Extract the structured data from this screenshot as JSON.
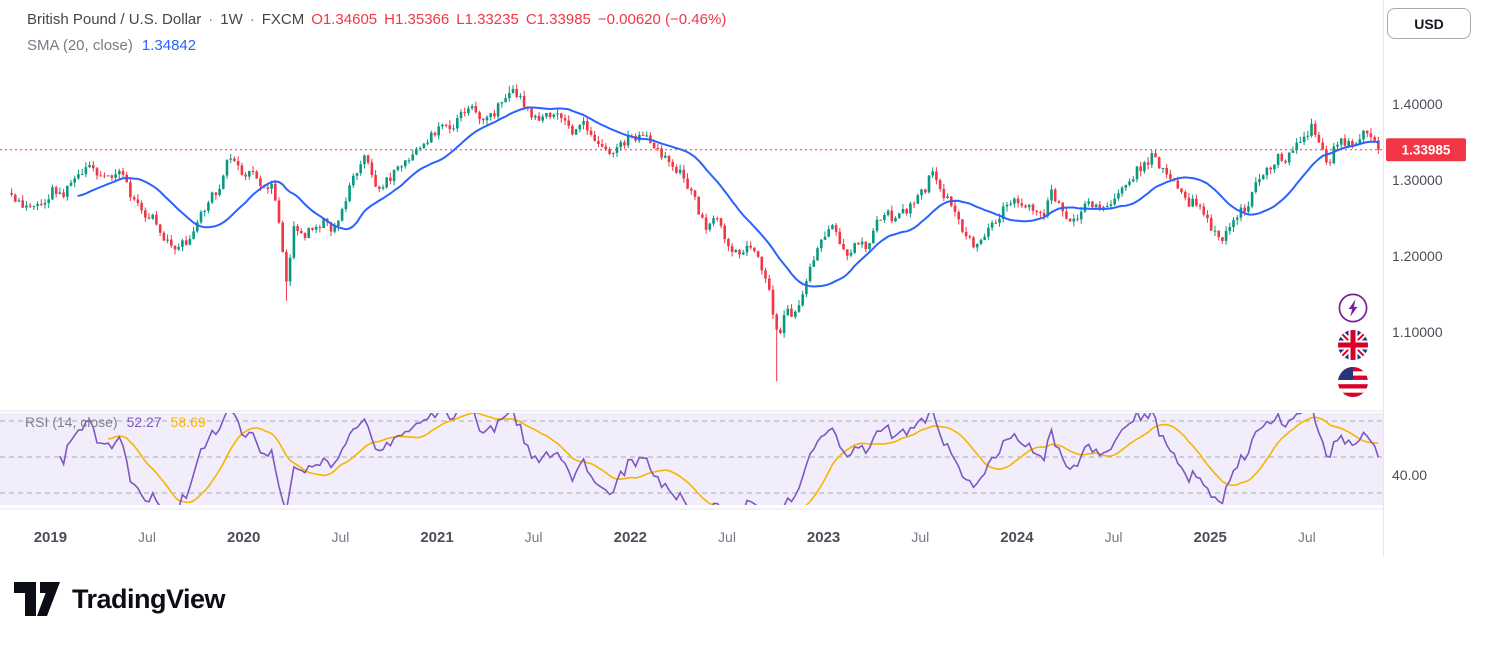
{
  "legend": {
    "symbol": "British Pound / U.S. Dollar",
    "sep": "·",
    "interval": "1W",
    "exchange": "FXCM",
    "quote": {
      "open_label": "O",
      "open": "1.34605",
      "high_label": "H",
      "high": "1.35366",
      "low_label": "L",
      "low": "1.33235",
      "close_label": "C",
      "close": "1.33985",
      "change_text": "−0.00620 (−0.46%)"
    },
    "sma": {
      "label": "SMA (20, close)",
      "value": "1.34842"
    },
    "rsi": {
      "label": "RSI (14, close)",
      "value": "52.27",
      "ma_value": "58.69"
    }
  },
  "currency_button": {
    "label": "USD"
  },
  "side_icons": [
    {
      "name": "boost-lightning"
    },
    {
      "name": "flag-gb"
    },
    {
      "name": "flag-us"
    }
  ],
  "logo": {
    "text": "TradingView"
  },
  "colors": {
    "up": "#089981",
    "down": "#F23645",
    "sma": "#2962FF",
    "rsi": "#7E57C2",
    "rsi_ma": "#F7B500",
    "rsi_pane_bg": "#F2EDFA",
    "grid_dash": "#A8ABB5",
    "separator": "#E4E6EC",
    "axis_text": "#4A4E59",
    "text_muted": "#787B86",
    "badge_text": "#FFFFFF"
  },
  "chart_data": {
    "type": "candlestick",
    "title": "British Pound / U.S. Dollar · 1W · FXCM with SMA(20, close) and RSI(14, close)",
    "x_range": [
      2018.78,
      2025.87
    ],
    "last_close": 1.33985,
    "ohlc_last": {
      "open": 1.34605,
      "high": 1.35366,
      "low": 1.33235,
      "close": 1.33985,
      "change": -0.0062,
      "change_pct": -0.46
    },
    "sma": {
      "period": 20,
      "current": 1.34842
    },
    "rsi": {
      "period": 14,
      "ma_period": 14,
      "bands": [
        70,
        50,
        30
      ],
      "current": 52.27,
      "ma_current": 58.69
    },
    "price_axis": {
      "labels": [
        {
          "value": 1.4,
          "text": "1.40000"
        },
        {
          "value": 1.3,
          "text": "1.30000"
        },
        {
          "value": 1.2,
          "text": "1.20000"
        },
        {
          "value": 1.1,
          "text": "1.10000"
        }
      ],
      "last_price": {
        "value": 1.33985,
        "text": "1.33985"
      }
    },
    "rsi_axis": {
      "labels": [
        {
          "value": 40,
          "text": "40.00"
        }
      ]
    },
    "time_axis": {
      "labels": [
        {
          "t": 2019.0,
          "text": "2019",
          "major": true
        },
        {
          "t": 2019.5,
          "text": "Jul",
          "major": false
        },
        {
          "t": 2020.0,
          "text": "2020",
          "major": true
        },
        {
          "t": 2020.5,
          "text": "Jul",
          "major": false
        },
        {
          "t": 2021.0,
          "text": "2021",
          "major": true
        },
        {
          "t": 2021.5,
          "text": "Jul",
          "major": false
        },
        {
          "t": 2022.0,
          "text": "2022",
          "major": true
        },
        {
          "t": 2022.5,
          "text": "Jul",
          "major": false
        },
        {
          "t": 2023.0,
          "text": "2023",
          "major": true
        },
        {
          "t": 2023.5,
          "text": "Jul",
          "major": false
        },
        {
          "t": 2024.0,
          "text": "2024",
          "major": true
        },
        {
          "t": 2024.5,
          "text": "Jul",
          "major": false
        },
        {
          "t": 2025.0,
          "text": "2025",
          "major": true
        },
        {
          "t": 2025.5,
          "text": "Jul",
          "major": false
        }
      ]
    },
    "spikes": [
      {
        "t": 2020.22,
        "price": 1.141,
        "side": "low"
      },
      {
        "t": 2021.38,
        "price": 1.424,
        "side": "high"
      },
      {
        "t": 2022.765,
        "price": 1.035,
        "side": "low"
      }
    ],
    "close_anchors": [
      [
        2018.78,
        1.283
      ],
      [
        2018.84,
        1.272
      ],
      [
        2018.9,
        1.26
      ],
      [
        2018.96,
        1.27
      ],
      [
        2019.02,
        1.288
      ],
      [
        2019.06,
        1.274
      ],
      [
        2019.1,
        1.294
      ],
      [
        2019.16,
        1.308
      ],
      [
        2019.21,
        1.32
      ],
      [
        2019.26,
        1.306
      ],
      [
        2019.32,
        1.3
      ],
      [
        2019.37,
        1.308
      ],
      [
        2019.43,
        1.27
      ],
      [
        2019.48,
        1.258
      ],
      [
        2019.54,
        1.247
      ],
      [
        2019.6,
        1.22
      ],
      [
        2019.65,
        1.208
      ],
      [
        2019.71,
        1.222
      ],
      [
        2019.76,
        1.246
      ],
      [
        2019.82,
        1.276
      ],
      [
        2019.87,
        1.29
      ],
      [
        2019.93,
        1.333
      ],
      [
        2019.99,
        1.307
      ],
      [
        2020.05,
        1.306
      ],
      [
        2020.1,
        1.292
      ],
      [
        2020.15,
        1.29
      ],
      [
        2020.19,
        1.235
      ],
      [
        2020.22,
        1.163
      ],
      [
        2020.26,
        1.237
      ],
      [
        2020.31,
        1.228
      ],
      [
        2020.36,
        1.235
      ],
      [
        2020.41,
        1.245
      ],
      [
        2020.46,
        1.233
      ],
      [
        2020.52,
        1.27
      ],
      [
        2020.57,
        1.307
      ],
      [
        2020.63,
        1.334
      ],
      [
        2020.68,
        1.293
      ],
      [
        2020.73,
        1.294
      ],
      [
        2020.79,
        1.316
      ],
      [
        2020.85,
        1.323
      ],
      [
        2020.91,
        1.345
      ],
      [
        2020.97,
        1.358
      ],
      [
        2021.03,
        1.369
      ],
      [
        2021.09,
        1.374
      ],
      [
        2021.13,
        1.389
      ],
      [
        2021.17,
        1.401
      ],
      [
        2021.22,
        1.38
      ],
      [
        2021.28,
        1.384
      ],
      [
        2021.33,
        1.399
      ],
      [
        2021.38,
        1.416
      ],
      [
        2021.42,
        1.411
      ],
      [
        2021.47,
        1.393
      ],
      [
        2021.52,
        1.377
      ],
      [
        2021.57,
        1.39
      ],
      [
        2021.62,
        1.386
      ],
      [
        2021.66,
        1.374
      ],
      [
        2021.7,
        1.362
      ],
      [
        2021.75,
        1.376
      ],
      [
        2021.8,
        1.361
      ],
      [
        2021.85,
        1.349
      ],
      [
        2021.89,
        1.333
      ],
      [
        2021.94,
        1.342
      ],
      [
        2021.99,
        1.353
      ],
      [
        2022.05,
        1.358
      ],
      [
        2022.09,
        1.352
      ],
      [
        2022.13,
        1.34
      ],
      [
        2022.18,
        1.33
      ],
      [
        2022.23,
        1.317
      ],
      [
        2022.28,
        1.301
      ],
      [
        2022.32,
        1.283
      ],
      [
        2022.36,
        1.255
      ],
      [
        2022.4,
        1.234
      ],
      [
        2022.44,
        1.26
      ],
      [
        2022.48,
        1.226
      ],
      [
        2022.53,
        1.209
      ],
      [
        2022.57,
        1.199
      ],
      [
        2022.61,
        1.217
      ],
      [
        2022.65,
        1.204
      ],
      [
        2022.69,
        1.173
      ],
      [
        2022.72,
        1.15
      ],
      [
        2022.745,
        1.117
      ],
      [
        2022.765,
        1.086
      ],
      [
        2022.8,
        1.133
      ],
      [
        2022.84,
        1.117
      ],
      [
        2022.88,
        1.138
      ],
      [
        2022.93,
        1.185
      ],
      [
        2022.97,
        1.213
      ],
      [
        2023.01,
        1.226
      ],
      [
        2023.05,
        1.239
      ],
      [
        2023.09,
        1.209
      ],
      [
        2023.14,
        1.204
      ],
      [
        2023.19,
        1.222
      ],
      [
        2023.23,
        1.212
      ],
      [
        2023.28,
        1.245
      ],
      [
        2023.33,
        1.256
      ],
      [
        2023.37,
        1.246
      ],
      [
        2023.42,
        1.259
      ],
      [
        2023.47,
        1.272
      ],
      [
        2023.52,
        1.286
      ],
      [
        2023.56,
        1.31
      ],
      [
        2023.6,
        1.284
      ],
      [
        2023.65,
        1.271
      ],
      [
        2023.7,
        1.246
      ],
      [
        2023.75,
        1.221
      ],
      [
        2023.79,
        1.214
      ],
      [
        2023.84,
        1.233
      ],
      [
        2023.89,
        1.247
      ],
      [
        2023.94,
        1.263
      ],
      [
        2023.99,
        1.272
      ],
      [
        2024.05,
        1.268
      ],
      [
        2024.09,
        1.262
      ],
      [
        2024.14,
        1.258
      ],
      [
        2024.18,
        1.286
      ],
      [
        2024.23,
        1.261
      ],
      [
        2024.27,
        1.246
      ],
      [
        2024.32,
        1.253
      ],
      [
        2024.37,
        1.271
      ],
      [
        2024.42,
        1.263
      ],
      [
        2024.47,
        1.269
      ],
      [
        2024.52,
        1.283
      ],
      [
        2024.57,
        1.292
      ],
      [
        2024.62,
        1.313
      ],
      [
        2024.67,
        1.322
      ],
      [
        2024.71,
        1.338
      ],
      [
        2024.75,
        1.311
      ],
      [
        2024.8,
        1.305
      ],
      [
        2024.84,
        1.291
      ],
      [
        2024.88,
        1.268
      ],
      [
        2024.92,
        1.274
      ],
      [
        2024.97,
        1.253
      ],
      [
        2025.02,
        1.233
      ],
      [
        2025.06,
        1.219
      ],
      [
        2025.11,
        1.241
      ],
      [
        2025.15,
        1.26
      ],
      [
        2025.19,
        1.264
      ],
      [
        2025.23,
        1.293
      ],
      [
        2025.28,
        1.306
      ],
      [
        2025.32,
        1.323
      ],
      [
        2025.36,
        1.331
      ],
      [
        2025.4,
        1.328
      ],
      [
        2025.45,
        1.35
      ],
      [
        2025.49,
        1.357
      ],
      [
        2025.53,
        1.371
      ],
      [
        2025.57,
        1.343
      ],
      [
        2025.61,
        1.322
      ],
      [
        2025.65,
        1.345
      ],
      [
        2025.69,
        1.352
      ],
      [
        2025.73,
        1.343
      ],
      [
        2025.77,
        1.357
      ],
      [
        2025.81,
        1.366
      ],
      [
        2025.84,
        1.351
      ],
      [
        2025.87,
        1.33985
      ]
    ]
  }
}
